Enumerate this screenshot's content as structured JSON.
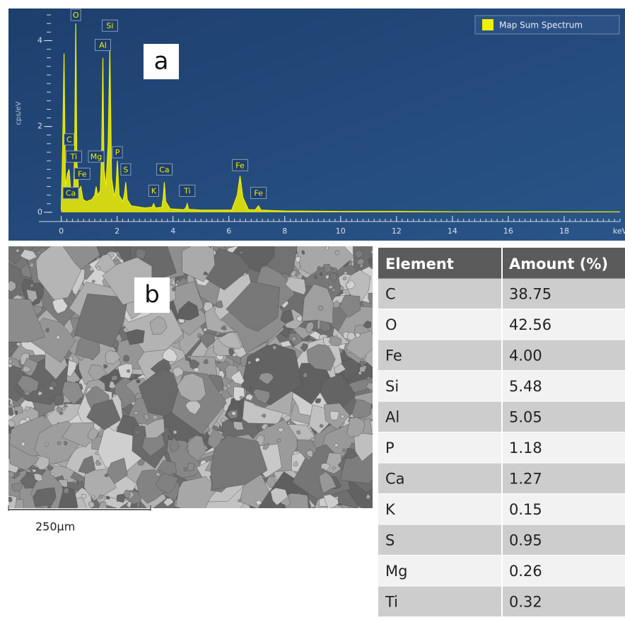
{
  "chart_data": {
    "type": "area",
    "panel_label": "a",
    "y_label": "cps/eV",
    "x_label": "keV",
    "x": [
      0,
      0.05,
      0.1,
      0.15,
      0.22,
      0.28,
      0.34,
      0.4,
      0.45,
      0.48,
      0.52,
      0.56,
      0.62,
      0.7,
      0.78,
      0.9,
      1.1,
      1.2,
      1.25,
      1.3,
      1.4,
      1.45,
      1.49,
      1.53,
      1.6,
      1.68,
      1.74,
      1.8,
      1.9,
      1.96,
      2.01,
      2.07,
      2.2,
      2.27,
      2.31,
      2.36,
      2.5,
      3.0,
      3.25,
      3.31,
      3.37,
      3.6,
      3.65,
      3.69,
      3.74,
      3.9,
      4.4,
      4.47,
      4.51,
      4.56,
      5.0,
      6.1,
      6.3,
      6.4,
      6.5,
      6.7,
      6.95,
      7.06,
      7.15,
      8,
      10,
      12,
      14,
      16,
      18,
      20
    ],
    "series": [
      {
        "name": "Map Sum Spectrum",
        "color": "#f0f000",
        "values": [
          0.05,
          1.5,
          3.7,
          0.6,
          0.9,
          1.0,
          0.5,
          0.45,
          0.6,
          1.5,
          4.4,
          1.2,
          0.5,
          0.6,
          0.3,
          0.25,
          0.3,
          0.4,
          0.6,
          0.4,
          0.5,
          1.5,
          3.6,
          1.0,
          0.6,
          1.6,
          3.8,
          0.8,
          0.35,
          0.6,
          1.2,
          0.4,
          0.25,
          0.45,
          0.7,
          0.3,
          0.15,
          0.1,
          0.12,
          0.2,
          0.1,
          0.12,
          0.35,
          0.7,
          0.25,
          0.08,
          0.06,
          0.12,
          0.2,
          0.07,
          0.05,
          0.05,
          0.4,
          0.85,
          0.35,
          0.06,
          0.06,
          0.15,
          0.05,
          0.03,
          0.02,
          0.02,
          0.01,
          0.01,
          0.01,
          0.01
        ]
      }
    ],
    "xlim": [
      -0.8,
      20
    ],
    "ylim": [
      -0.1,
      4.7
    ],
    "xticks": [
      0,
      2,
      4,
      6,
      8,
      10,
      12,
      14,
      16,
      18
    ],
    "yticks": [
      0,
      2,
      4
    ],
    "legend": "upper right",
    "annotations": [
      {
        "text": "O",
        "x": 0.52,
        "y": 4.6
      },
      {
        "text": "Si",
        "x": 1.74,
        "y": 4.35
      },
      {
        "text": "Al",
        "x": 1.49,
        "y": 3.9
      },
      {
        "text": "C",
        "x": 0.28,
        "y": 1.7
      },
      {
        "text": "Ti",
        "x": 0.45,
        "y": 1.3
      },
      {
        "text": "Mg",
        "x": 1.25,
        "y": 1.3
      },
      {
        "text": "P",
        "x": 2.01,
        "y": 1.4
      },
      {
        "text": "Fe",
        "x": 0.75,
        "y": 0.9
      },
      {
        "text": "S",
        "x": 2.31,
        "y": 1.0
      },
      {
        "text": "Ca",
        "x": 3.69,
        "y": 1.0
      },
      {
        "text": "Ca",
        "x": 0.34,
        "y": 0.45
      },
      {
        "text": "K",
        "x": 3.31,
        "y": 0.5
      },
      {
        "text": "Ti",
        "x": 4.51,
        "y": 0.5
      },
      {
        "text": "Fe",
        "x": 6.4,
        "y": 1.1
      },
      {
        "text": "Fe",
        "x": 7.06,
        "y": 0.45
      }
    ]
  },
  "image_panel": {
    "panel_label": "b",
    "scale_bar": "250μm"
  },
  "table": {
    "header": [
      "Element",
      "Amount (%)"
    ],
    "rows": [
      [
        "C",
        "38.75"
      ],
      [
        "O",
        "42.56"
      ],
      [
        "Fe",
        "4.00"
      ],
      [
        "Si",
        "5.48"
      ],
      [
        "Al",
        "5.05"
      ],
      [
        "P",
        "1.18"
      ],
      [
        "Ca",
        "1.27"
      ],
      [
        "K",
        "0.15"
      ],
      [
        "S",
        "0.95"
      ],
      [
        "Mg",
        "0.26"
      ],
      [
        "Ti",
        "0.32"
      ]
    ]
  }
}
